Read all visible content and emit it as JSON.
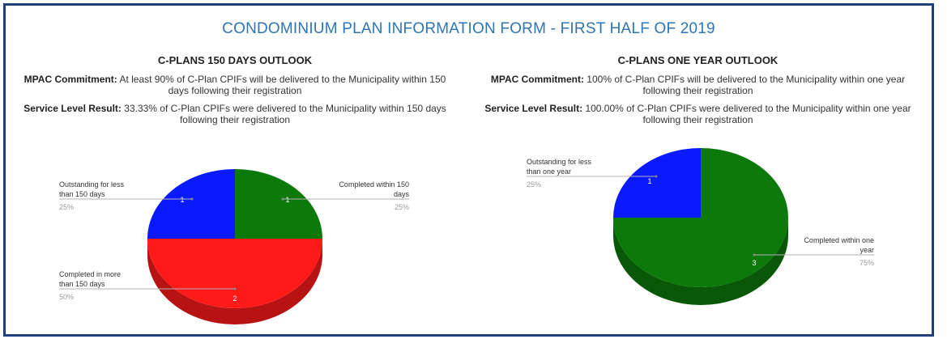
{
  "title": "CONDOMINIUM PLAN INFORMATION FORM - FIRST HALF OF 2019",
  "panels": [
    {
      "heading": "C-PLANS 150 DAYS OUTLOOK",
      "commitment_label": "MPAC Commitment:",
      "commitment_text": "At least 90% of C-Plan CPIFs will be delivered to the Municipality within 150 days following their registration",
      "result_label": "Service Level Result:",
      "result_text": "33.33% of C-Plan CPIFs were delivered to the Municipality within 150 days following their registration"
    },
    {
      "heading": "C-PLANS ONE YEAR OUTLOOK",
      "commitment_label": "MPAC Commitment:",
      "commitment_text": "100% of C-Plan CPIFs will be delivered to the Municipality within one year following their registration",
      "result_label": "Service Level Result:",
      "result_text": "100.00% of C-Plan CPIFs were delivered to the Municipality within one year following their registration"
    }
  ],
  "chart_data": [
    {
      "type": "pie",
      "style": "3d",
      "slices": [
        {
          "label": "Completed within 150 days",
          "value": 1,
          "percent": "25%",
          "color": "#0b7a0b"
        },
        {
          "label": "Completed in more than 150 days",
          "value": 2,
          "percent": "50%",
          "color": "#ff1a1a"
        },
        {
          "label": "Outstanding for less than 150 days",
          "value": 1,
          "percent": "25%",
          "color": "#0a1aff"
        }
      ]
    },
    {
      "type": "pie",
      "style": "3d",
      "slices": [
        {
          "label": "Completed within one year",
          "value": 3,
          "percent": "75%",
          "color": "#0b7a0b"
        },
        {
          "label": "Outstanding for less than one year",
          "value": 1,
          "percent": "25%",
          "color": "#0a1aff"
        }
      ]
    }
  ]
}
